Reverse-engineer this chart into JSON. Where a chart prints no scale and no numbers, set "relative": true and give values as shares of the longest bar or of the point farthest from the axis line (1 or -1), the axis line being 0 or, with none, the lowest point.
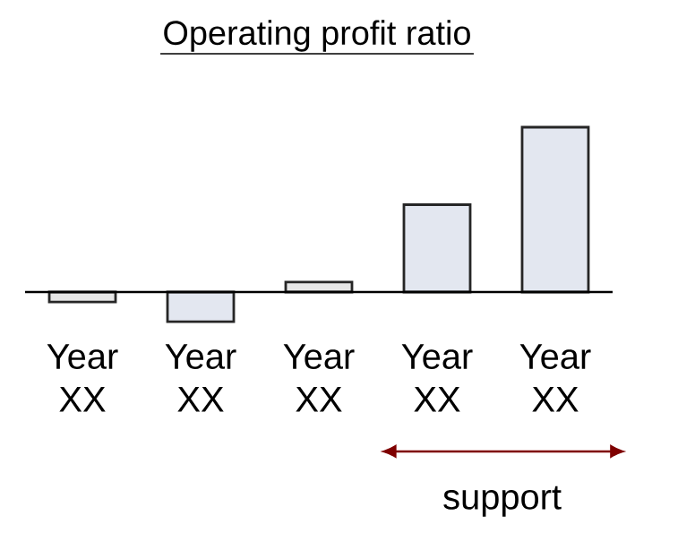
{
  "chart_data": {
    "type": "bar",
    "title": "Operating profit ratio",
    "relative": true,
    "categories": [
      "Year XX",
      "Year XX",
      "Year XX",
      "Year XX",
      "Year XX"
    ],
    "values": [
      -0.06,
      -0.18,
      0.06,
      0.53,
      1
    ],
    "colors": [
      "#e6e6e6",
      "#e3e7f0",
      "#e6e6e6",
      "#e3e7f0",
      "#e3e7f0"
    ],
    "annotations": [
      "support"
    ]
  }
}
